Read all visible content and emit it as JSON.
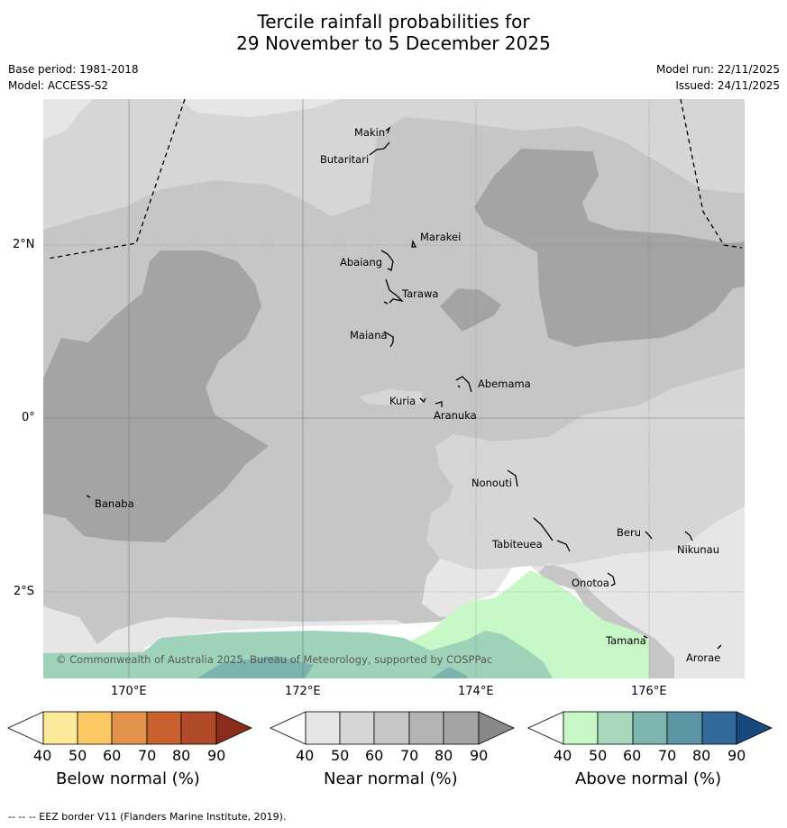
{
  "title": {
    "line1": "Tercile rainfall probabilities for",
    "line2": "29 November to 5 December 2025"
  },
  "meta": {
    "base_period": "Base period: 1981-2018",
    "model": "Model: ACCESS-S2",
    "model_run": "Model run: 22/11/2025",
    "issued": "Issued: 24/11/2025"
  },
  "map": {
    "copyright": "© Commonwealth of Australia 2025, Bureau of Meteorology, supported by COSPPac",
    "lat_labels": [
      "2°N",
      "0°",
      "2°S"
    ],
    "lon_labels": [
      "170°E",
      "172°E",
      "174°E",
      "176°E"
    ],
    "places": [
      {
        "id": "makin",
        "name": "Makin"
      },
      {
        "id": "butaritari",
        "name": "Butaritari"
      },
      {
        "id": "marakei",
        "name": "Marakei"
      },
      {
        "id": "abaiang",
        "name": "Abaiang"
      },
      {
        "id": "tarawa",
        "name": "Tarawa"
      },
      {
        "id": "maiana",
        "name": "Maiana"
      },
      {
        "id": "abemama",
        "name": "Abemama"
      },
      {
        "id": "kuria",
        "name": "Kuria"
      },
      {
        "id": "aranuka",
        "name": "Aranuka"
      },
      {
        "id": "banaba",
        "name": "Banaba"
      },
      {
        "id": "nonouti",
        "name": "Nonouti"
      },
      {
        "id": "tabiteuea",
        "name": "Tabiteuea"
      },
      {
        "id": "beru",
        "name": "Beru"
      },
      {
        "id": "nikunau",
        "name": "Nikunau"
      },
      {
        "id": "onotoa",
        "name": "Onotoa"
      },
      {
        "id": "tamana",
        "name": "Tamana"
      },
      {
        "id": "arorae",
        "name": "Arorae"
      }
    ],
    "colors": {
      "near_40": "#e6e6e6",
      "near_50": "#d6d6d6",
      "near_60": "#c6c6c6",
      "near_70": "#b4b4b4",
      "near_80": "#a4a4a4",
      "above_40": "#c8f8c8",
      "above_50": "#9ed2b9",
      "above_60": "#7ab4ac"
    }
  },
  "colorbars": [
    {
      "id": "below",
      "label": "Below normal (%)",
      "ticks": [
        "40",
        "50",
        "60",
        "70",
        "80",
        "90"
      ],
      "colors": [
        "#ffffff",
        "#fde99b",
        "#fcc864",
        "#e0914a",
        "#c96130",
        "#b04a28",
        "#8b2d1c"
      ]
    },
    {
      "id": "near",
      "label": "Near normal (%)",
      "ticks": [
        "40",
        "50",
        "60",
        "70",
        "80",
        "90"
      ],
      "colors": [
        "#ffffff",
        "#e6e6e6",
        "#d6d6d6",
        "#c6c6c6",
        "#b4b4b4",
        "#a4a4a4",
        "#888888"
      ]
    },
    {
      "id": "above",
      "label": "Above normal (%)",
      "ticks": [
        "40",
        "50",
        "60",
        "70",
        "80",
        "90"
      ],
      "colors": [
        "#ffffff",
        "#c8f8c8",
        "#a6d7bd",
        "#7bb5ad",
        "#5b95a3",
        "#336a9c",
        "#174a7c"
      ]
    }
  ],
  "footer": "--  --  -- EEZ border V11 (Flanders Marine Institute, 2019)."
}
